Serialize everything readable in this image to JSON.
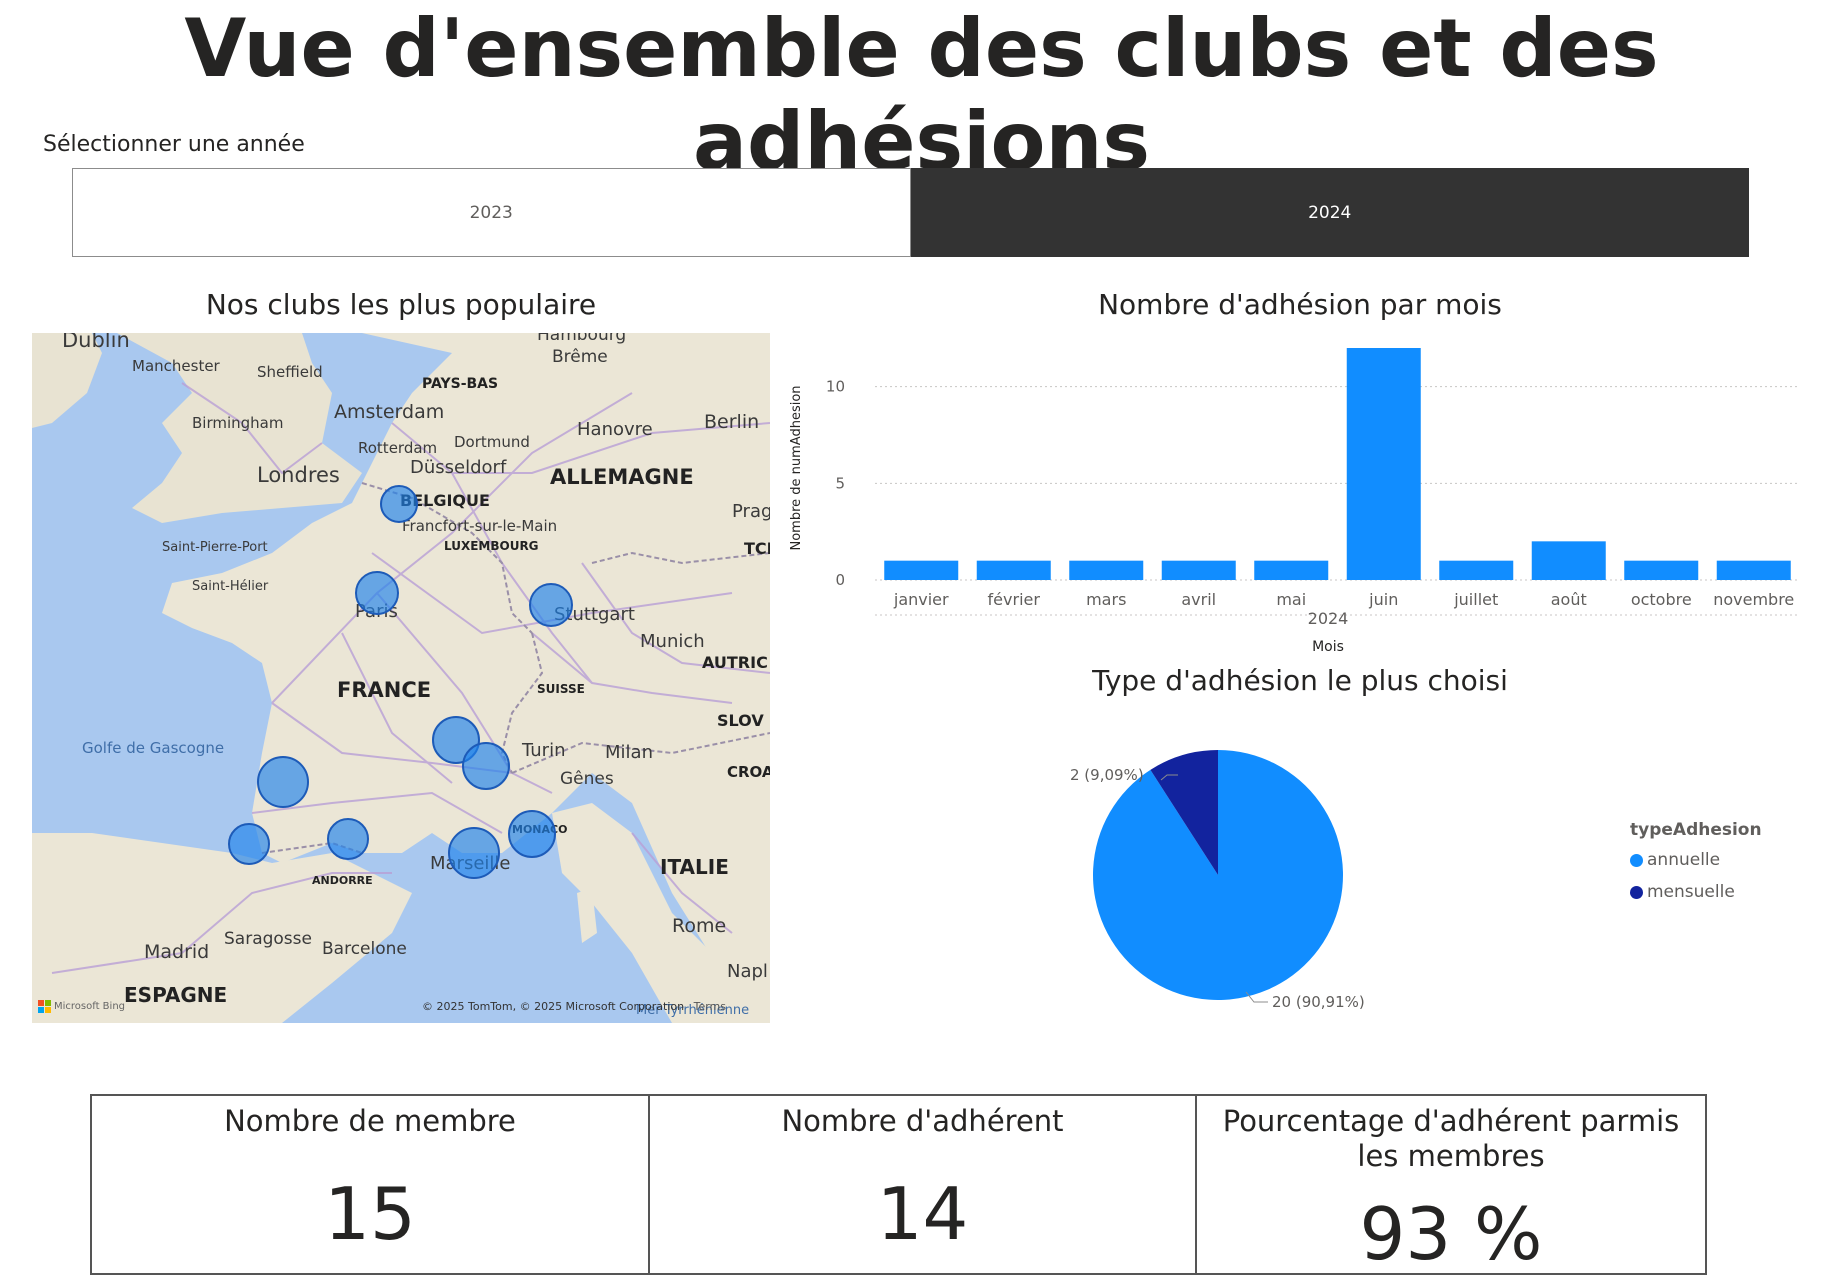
{
  "page": {
    "title": "Vue d'ensemble des clubs et des adhésions"
  },
  "slicer": {
    "header": "Sélectionner une année",
    "options": [
      {
        "label": "2023",
        "selected": false
      },
      {
        "label": "2024",
        "selected": true
      }
    ]
  },
  "map": {
    "title": "Nos clubs les plus populaire",
    "attribution": "© 2025 TomTom, © 2025 Microsoft Corporation",
    "terms": "Terms",
    "logo": "Microsoft Bing",
    "labels": {
      "dublin": "Dublin",
      "manchester": "Manchester",
      "sheffield": "Sheffield",
      "birmingham": "Birmingham",
      "londres": "Londres",
      "amsterdam": "Amsterdam",
      "rotterdam": "Rotterdam",
      "dortmund": "Dortmund",
      "dusseldorf": "Düsseldorf",
      "hambourg": "Hambourg",
      "breme": "Brême",
      "hanovre": "Hanovre",
      "berlin": "Berlin",
      "pays_bas": "PAYS-BAS",
      "allemagne": "ALLEMAGNE",
      "belgique": "BELGIQUE",
      "francfort": "Francfort-sur-le-Main",
      "luxembourg": "LUXEMBOURG",
      "prague": "Prag",
      "tch": "TCH",
      "saint_pierre": "Saint-Pierre-Port",
      "saint_helier": "Saint-Hélier",
      "paris": "Paris",
      "stuttgart": "Stuttgart",
      "munich": "Munich",
      "autriche": "AUTRIC",
      "france": "FRANCE",
      "suisse": "SUISSE",
      "slovenie": "SLOV",
      "golfe": "Golfe de Gascogne",
      "turin": "Turin",
      "milan": "Milan",
      "genes": "Gênes",
      "croatie": "CROA",
      "monaco": "MONACO",
      "andorre": "ANDORRE",
      "marseille": "Marseille",
      "italie": "ITALIE",
      "rome": "Rome",
      "madrid": "Madrid",
      "saragosse": "Saragosse",
      "barcelone": "Barcelone",
      "espagne": "ESPAGNE",
      "naples": "Napl",
      "mer": "Mer Tyrrhénienne"
    }
  },
  "bar_chart": {
    "title": "Nombre d'adhésion par mois",
    "ylabel": "Nombre de numAdhesion",
    "xlabel": "Mois",
    "year_label": "2024"
  },
  "pie_chart": {
    "title": "Type d'adhésion le plus choisi",
    "legend_title": "typeAdhesion",
    "label_small": "2 (9,09%)",
    "label_large": "20 (90,91%)"
  },
  "chart_data": [
    {
      "type": "bar",
      "categories": [
        "janvier",
        "février",
        "mars",
        "avril",
        "mai",
        "juin",
        "juillet",
        "août",
        "octobre",
        "novembre"
      ],
      "values": [
        1,
        1,
        1,
        1,
        1,
        12,
        1,
        2,
        1,
        1
      ],
      "title": "Nombre d'adhésion par mois",
      "xlabel": "Mois",
      "ylabel": "Nombre de numAdhesion",
      "yticks": [
        0,
        5,
        10
      ],
      "ylim": [
        0,
        12
      ],
      "grid": true,
      "color": "#118dff"
    },
    {
      "type": "pie",
      "title": "Type d'adhésion le plus choisi",
      "slices": [
        {
          "name": "annuelle",
          "value": 20,
          "pct": 90.91,
          "color": "#118dff"
        },
        {
          "name": "mensuelle",
          "value": 2,
          "pct": 9.09,
          "color": "#12239e"
        }
      ],
      "legend": "right"
    }
  ],
  "cards": [
    {
      "label": "Nombre de membre",
      "value": "15"
    },
    {
      "label": "Nombre d'adhérent",
      "value": "14"
    },
    {
      "label": "Pourcentage d'adhérent parmis les membres",
      "value": "93 %"
    }
  ]
}
